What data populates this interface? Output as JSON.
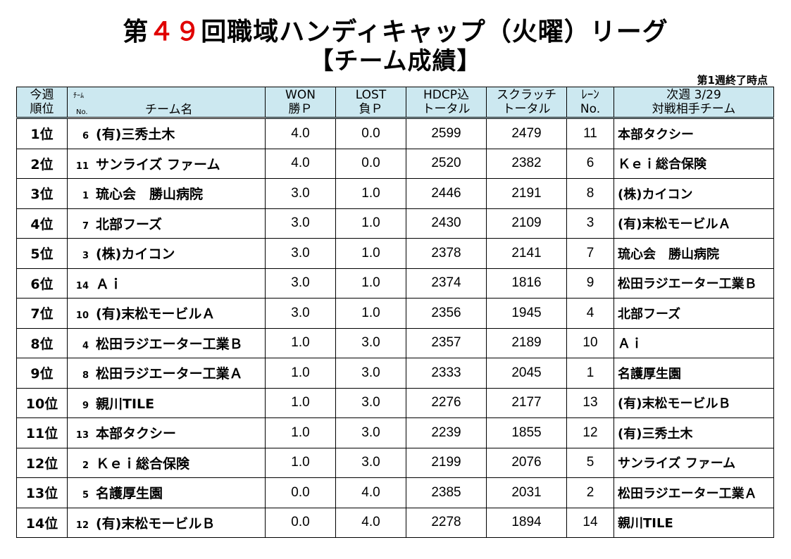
{
  "title_prefix": "第",
  "title_number": "４９",
  "title_suffix": "回職域ハンディキャップ（火曜）リーグ",
  "subtitle": "【チーム成績】",
  "as_of": "第1週終了時点",
  "headers": {
    "rank_line1": "今週",
    "rank_line2": "順位",
    "team_no_top": "ﾁｰﾑ",
    "team_no_bottom": "No.",
    "team_name": "チーム名",
    "won_line1": "WON",
    "won_line2": "勝Ｐ",
    "lost_line1": "LOST",
    "lost_line2": "負Ｐ",
    "hdcp_line1": "HDCP込",
    "hdcp_line2": "トータル",
    "scratch_line1": "スクラッチ",
    "scratch_line2": "トータル",
    "lane_line1": "ﾚｰﾝ",
    "lane_line2": "No.",
    "next_line1": "次週 3/29",
    "next_line2": "対戦相手チーム"
  },
  "rows": [
    {
      "rank": "1位",
      "no": "6",
      "team": "(有)三秀土木",
      "won": "4.0",
      "lost": "0.0",
      "hdcp": "2599",
      "scratch": "2479",
      "lane": "11",
      "opponent": "本部タクシー"
    },
    {
      "rank": "2位",
      "no": "11",
      "team": "サンライズ ファーム",
      "won": "4.0",
      "lost": "0.0",
      "hdcp": "2520",
      "scratch": "2382",
      "lane": "6",
      "opponent": "Ｋｅｉ総合保険"
    },
    {
      "rank": "3位",
      "no": "1",
      "team": "琉心会　勝山病院",
      "won": "3.0",
      "lost": "1.0",
      "hdcp": "2446",
      "scratch": "2191",
      "lane": "8",
      "opponent": "(株)カイコン"
    },
    {
      "rank": "4位",
      "no": "7",
      "team": "北部フーズ",
      "won": "3.0",
      "lost": "1.0",
      "hdcp": "2430",
      "scratch": "2109",
      "lane": "3",
      "opponent": "(有)末松モービルＡ"
    },
    {
      "rank": "5位",
      "no": "3",
      "team": "(株)カイコン",
      "won": "3.0",
      "lost": "1.0",
      "hdcp": "2378",
      "scratch": "2141",
      "lane": "7",
      "opponent": "琉心会　勝山病院"
    },
    {
      "rank": "6位",
      "no": "14",
      "team": "Ａｉ",
      "won": "3.0",
      "lost": "1.0",
      "hdcp": "2374",
      "scratch": "1816",
      "lane": "9",
      "opponent": "松田ラジエーター工業Ｂ"
    },
    {
      "rank": "7位",
      "no": "10",
      "team": "(有)末松モービルＡ",
      "won": "3.0",
      "lost": "1.0",
      "hdcp": "2356",
      "scratch": "1945",
      "lane": "4",
      "opponent": "北部フーズ"
    },
    {
      "rank": "8位",
      "no": "4",
      "team": "松田ラジエーター工業Ｂ",
      "won": "1.0",
      "lost": "3.0",
      "hdcp": "2357",
      "scratch": "2189",
      "lane": "10",
      "opponent": "Ａｉ"
    },
    {
      "rank": "9位",
      "no": "8",
      "team": "松田ラジエーター工業Ａ",
      "won": "1.0",
      "lost": "3.0",
      "hdcp": "2333",
      "scratch": "2045",
      "lane": "1",
      "opponent": "名護厚生園"
    },
    {
      "rank": "10位",
      "no": "9",
      "team": "親川TILE",
      "won": "1.0",
      "lost": "3.0",
      "hdcp": "2276",
      "scratch": "2177",
      "lane": "13",
      "opponent": "(有)末松モービルＢ"
    },
    {
      "rank": "11位",
      "no": "13",
      "team": "本部タクシー",
      "won": "1.0",
      "lost": "3.0",
      "hdcp": "2239",
      "scratch": "1855",
      "lane": "12",
      "opponent": "(有)三秀土木"
    },
    {
      "rank": "12位",
      "no": "2",
      "team": "Ｋｅｉ総合保険",
      "won": "1.0",
      "lost": "3.0",
      "hdcp": "2199",
      "scratch": "2076",
      "lane": "5",
      "opponent": "サンライズ ファーム"
    },
    {
      "rank": "13位",
      "no": "5",
      "team": "名護厚生園",
      "won": "0.0",
      "lost": "4.0",
      "hdcp": "2385",
      "scratch": "2031",
      "lane": "2",
      "opponent": "松田ラジエーター工業Ａ"
    },
    {
      "rank": "14位",
      "no": "12",
      "team": "(有)末松モービルＢ",
      "won": "0.0",
      "lost": "4.0",
      "hdcp": "2278",
      "scratch": "1894",
      "lane": "14",
      "opponent": "親川TILE"
    }
  ]
}
